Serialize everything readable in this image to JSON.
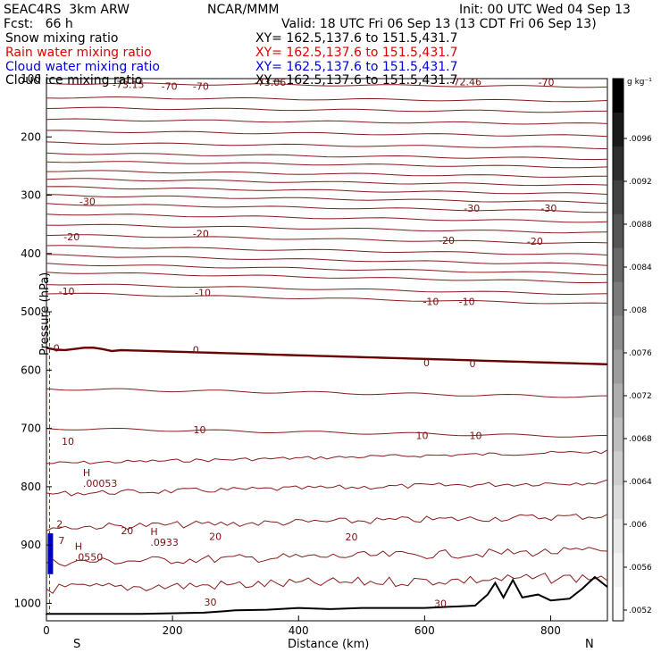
{
  "header": {
    "model": "SEAC4RS  3km ARW",
    "center": "NCAR/MMM",
    "init": "Init: 00 UTC Wed 04 Sep 13",
    "fcst": "Fcst:   66 h",
    "valid": "Valid: 18 UTC Fri 06 Sep 13 (13 CDT Fri 06 Sep 13)",
    "fields": [
      {
        "name": "Snow mixing ratio",
        "xy": "XY= 162.5,137.6 to 151.5,431.7",
        "color": "#000000"
      },
      {
        "name": "Rain water mixing ratio",
        "xy": "XY= 162.5,137.6 to 151.5,431.7",
        "color": "#e00000"
      },
      {
        "name": "Cloud water mixing ratio",
        "xy": "XY= 162.5,137.6 to 151.5,431.7",
        "color": "#0000e0"
      },
      {
        "name": "Cloud ice mixing ratio",
        "xy": "XY= 162.5,137.6 to 151.5,431.7",
        "color": "#000000"
      }
    ]
  },
  "chart_data": {
    "type": "line",
    "title": "",
    "xlabel": "Distance (km)",
    "ylabel": "Pressure (hPa)",
    "xlim": [
      0,
      890
    ],
    "ylim": [
      1030,
      100
    ],
    "x_ticks": [
      "0",
      "200",
      "400",
      "600",
      "800"
    ],
    "y_ticks": [
      "100",
      "200",
      "300",
      "400",
      "500",
      "600",
      "700",
      "800",
      "900",
      "1000"
    ],
    "endpoints": {
      "left": "S",
      "right": "N"
    },
    "temperature_labels": [
      {
        "text": "-73.15",
        "x": 130,
        "p": 110
      },
      {
        "text": "-70",
        "x": 195,
        "p": 113
      },
      {
        "text": "-70",
        "x": 245,
        "p": 113
      },
      {
        "text": "-73.06",
        "x": 355,
        "p": 106
      },
      {
        "text": "-72.46",
        "x": 665,
        "p": 105
      },
      {
        "text": "-70",
        "x": 793,
        "p": 106
      },
      {
        "text": "-30",
        "x": 65,
        "p": 311
      },
      {
        "text": "-30",
        "x": 675,
        "p": 322
      },
      {
        "text": "-30",
        "x": 797,
        "p": 322
      },
      {
        "text": "-20",
        "x": 40,
        "p": 371
      },
      {
        "text": "-20",
        "x": 245,
        "p": 366
      },
      {
        "text": "-20",
        "x": 635,
        "p": 377
      },
      {
        "text": "-20",
        "x": 775,
        "p": 379
      },
      {
        "text": "-10",
        "x": 32,
        "p": 465
      },
      {
        "text": "-10",
        "x": 248,
        "p": 467
      },
      {
        "text": "-10",
        "x": 610,
        "p": 482
      },
      {
        "text": "-10",
        "x": 667,
        "p": 482
      },
      {
        "text": "0",
        "x": 16,
        "p": 562
      },
      {
        "text": "0",
        "x": 237,
        "p": 565
      },
      {
        "text": "0",
        "x": 603,
        "p": 587
      },
      {
        "text": "0",
        "x": 676,
        "p": 589
      },
      {
        "text": "10",
        "x": 34,
        "p": 722
      },
      {
        "text": "10",
        "x": 243,
        "p": 702
      },
      {
        "text": "10",
        "x": 596,
        "p": 712
      },
      {
        "text": "10",
        "x": 681,
        "p": 712
      },
      {
        "text": "20",
        "x": 128,
        "p": 875
      },
      {
        "text": "20",
        "x": 268,
        "p": 885
      },
      {
        "text": "20",
        "x": 484,
        "p": 886
      },
      {
        "text": "30",
        "x": 260,
        "p": 998
      },
      {
        "text": "30",
        "x": 625,
        "p": 1000
      }
    ],
    "high_markers": [
      {
        "label": "H",
        "value": ".00053",
        "x": 58,
        "p": 782,
        "color": "#b00000"
      },
      {
        "label": "H",
        "value": ".0550",
        "x": 45,
        "p": 908,
        "color": "#0000c0"
      },
      {
        "label": "H",
        "value": ".0933",
        "x": 165,
        "p": 883,
        "color": "#0000c0"
      }
    ],
    "small_labels": [
      {
        "text": "2",
        "x": 16,
        "p": 870,
        "color": "#0000c0"
      },
      {
        "text": "7",
        "x": 19,
        "p": 898,
        "color": "#0000c0"
      }
    ],
    "colorbar": {
      "unit": "g kg⁻¹",
      "labels": [
        ".0096",
        ".0092",
        ".0088",
        ".0084",
        ".008",
        ".0076",
        ".0072",
        ".0068",
        ".0064",
        ".006",
        ".0056",
        ".0052"
      ],
      "colors": [
        "#000000",
        "#1a1a1a",
        "#2e2e2e",
        "#424242",
        "#555555",
        "#686868",
        "#7a7a7a",
        "#8c8c8c",
        "#9d9d9d",
        "#aeaeae",
        "#bebebe",
        "#cdcdcd",
        "#dbdbdb",
        "#e8e8e8",
        "#f3f3f3",
        "#fbfbfb"
      ]
    }
  }
}
